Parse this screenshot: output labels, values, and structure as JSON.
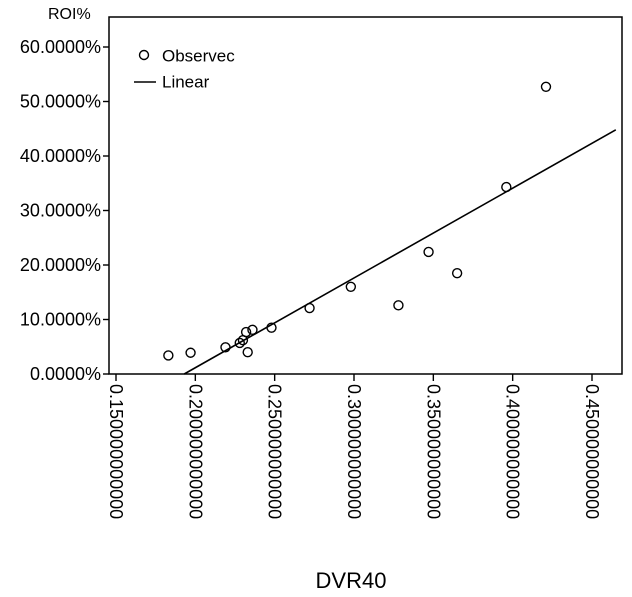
{
  "chart_data": {
    "type": "scatter",
    "title": "",
    "xlabel": "DVR40",
    "ylabel": "ROI%",
    "xlim": [
      0.15,
      0.465
    ],
    "ylim": [
      0,
      0.64
    ],
    "grid": false,
    "legend_position": "top-left",
    "x_ticks": [
      {
        "value": 0.15,
        "label": "0.150000000000"
      },
      {
        "value": 0.2,
        "label": "0.200000000000"
      },
      {
        "value": 0.25,
        "label": "0.250000000000"
      },
      {
        "value": 0.3,
        "label": "0.300000000000"
      },
      {
        "value": 0.35,
        "label": "0.350000000000"
      },
      {
        "value": 0.4,
        "label": "0.400000000000"
      },
      {
        "value": 0.45,
        "label": "0.450000000000"
      }
    ],
    "y_ticks": [
      {
        "value": 0.0,
        "label": "0.0000%"
      },
      {
        "value": 0.1,
        "label": "10.0000%"
      },
      {
        "value": 0.2,
        "label": "20.0000%"
      },
      {
        "value": 0.3,
        "label": "30.0000%"
      },
      {
        "value": 0.4,
        "label": "40.0000%"
      },
      {
        "value": 0.5,
        "label": "50.0000%"
      },
      {
        "value": 0.6,
        "label": "60.0000%"
      }
    ],
    "series": [
      {
        "name": "Observec",
        "kind": "scatter",
        "marker": "open-circle",
        "points": [
          {
            "x": 0.183,
            "y": 0.034
          },
          {
            "x": 0.197,
            "y": 0.039
          },
          {
            "x": 0.219,
            "y": 0.049
          },
          {
            "x": 0.228,
            "y": 0.057
          },
          {
            "x": 0.23,
            "y": 0.062
          },
          {
            "x": 0.232,
            "y": 0.077
          },
          {
            "x": 0.233,
            "y": 0.04
          },
          {
            "x": 0.236,
            "y": 0.081
          },
          {
            "x": 0.248,
            "y": 0.085
          },
          {
            "x": 0.272,
            "y": 0.121
          },
          {
            "x": 0.298,
            "y": 0.16
          },
          {
            "x": 0.328,
            "y": 0.126
          },
          {
            "x": 0.347,
            "y": 0.224
          },
          {
            "x": 0.365,
            "y": 0.185
          },
          {
            "x": 0.396,
            "y": 0.343
          },
          {
            "x": 0.421,
            "y": 0.527
          }
        ]
      },
      {
        "name": "Linear",
        "kind": "line",
        "points": [
          {
            "x": 0.193,
            "y": 0.0
          },
          {
            "x": 0.465,
            "y": 0.448
          }
        ]
      }
    ]
  }
}
